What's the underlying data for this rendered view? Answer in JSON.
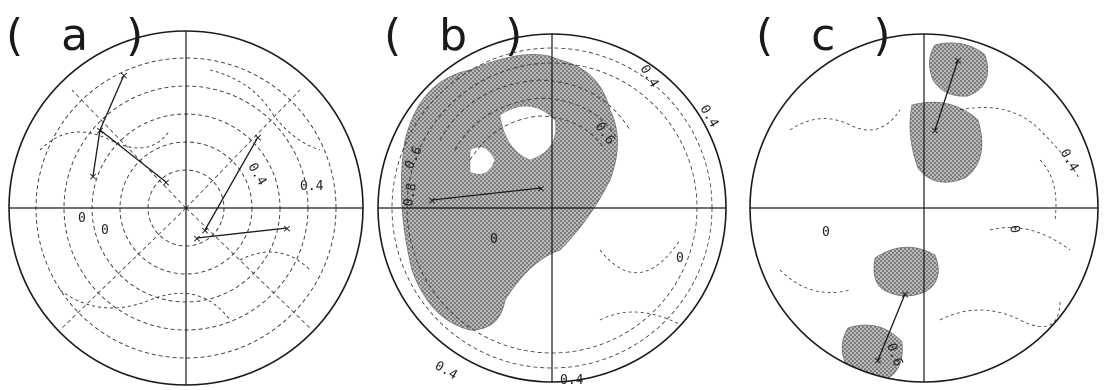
{
  "figure": {
    "ink_color": "#1a1a1a",
    "shade_color": "#9a9a9a",
    "panels": [
      {
        "id": "a",
        "label": "( a )",
        "contour_labels": [
          "0.4",
          "0.4",
          "0",
          "0"
        ],
        "vectors": 4
      },
      {
        "id": "b",
        "label": "( b )",
        "contour_labels": [
          "0.4",
          "0.4",
          "0.6",
          "0.6",
          "0.8",
          "0",
          "0",
          "0.4",
          "0.4"
        ],
        "vectors": 1
      },
      {
        "id": "c",
        "label": "( c )",
        "contour_labels": [
          "0.4",
          "0",
          "0",
          "0.6"
        ],
        "vectors": 2
      }
    ]
  }
}
